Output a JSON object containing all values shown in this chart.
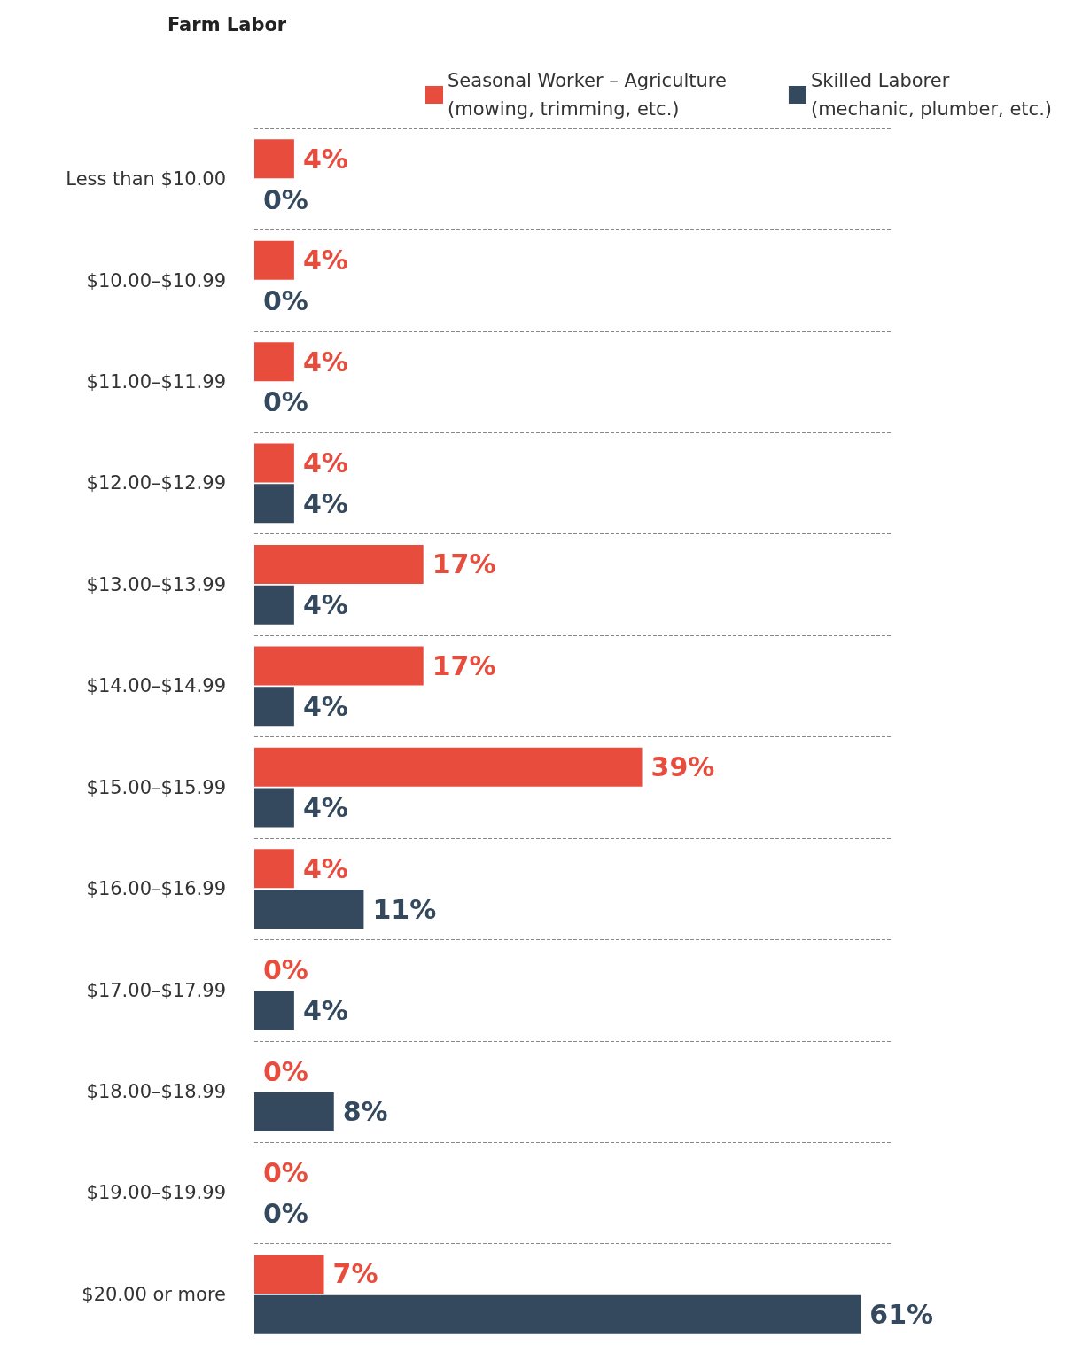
{
  "chart_data": {
    "type": "bar",
    "orientation": "horizontal",
    "title": "Farm Labor",
    "categories": [
      "Less than $10.00",
      "$10.00–$10.99",
      "$11.00–$11.99",
      "$12.00–$12.99",
      "$13.00–$13.99",
      "$14.00–$14.99",
      "$15.00–$15.99",
      "$16.00–$16.99",
      "$17.00–$17.99",
      "$18.00–$18.99",
      "$19.00–$19.99",
      "$20.00 or more"
    ],
    "series": [
      {
        "name": "Seasonal Worker – Agriculture\n(mowing, trimming, etc.)",
        "color": "#e84c3d",
        "values": [
          4,
          4,
          4,
          4,
          17,
          17,
          39,
          4,
          0,
          0,
          0,
          7
        ],
        "value_labels": [
          "4%",
          "4%",
          "4%",
          "4%",
          "17%",
          "17%",
          "39%",
          "4%",
          "0%",
          "0%",
          "0%",
          "7%"
        ]
      },
      {
        "name": "Skilled Laborer\n(mechanic, plumber, etc.)",
        "color": "#34495e",
        "values": [
          0,
          0,
          0,
          4,
          4,
          4,
          4,
          11,
          4,
          8,
          0,
          61
        ],
        "value_labels": [
          "0%",
          "0%",
          "0%",
          "4%",
          "4%",
          "4%",
          "4%",
          "11%",
          "4%",
          "8%",
          "0%",
          "61%"
        ]
      }
    ],
    "grid": "y",
    "legend": "top right"
  }
}
